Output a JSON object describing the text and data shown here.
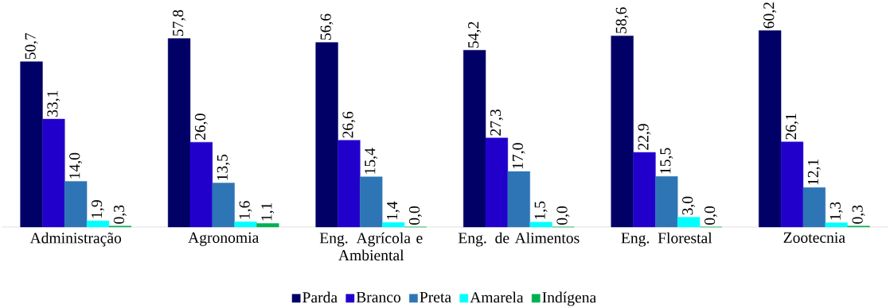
{
  "chart_data": {
    "type": "bar",
    "legend": "bottom",
    "categories": [
      "Administração",
      "Agronomia",
      "Eng. Agrícola e Ambiental",
      "Eng. de Alimentos",
      "Eng. Florestal",
      "Zootecnia"
    ],
    "series": [
      {
        "name": "Parda",
        "color": "#000066",
        "values": [
          50.7,
          57.8,
          56.6,
          54.2,
          58.6,
          60.2
        ],
        "value_labels": [
          "50,7",
          "57,8",
          "56,6",
          "54,2",
          "58,6",
          "60,2"
        ]
      },
      {
        "name": "Branco",
        "color": "#2200cc",
        "values": [
          33.1,
          26.0,
          26.6,
          27.3,
          22.9,
          26.1
        ],
        "value_labels": [
          "33,1",
          "26,0",
          "26,6",
          "27,3",
          "22,9",
          "26,1"
        ]
      },
      {
        "name": "Preta",
        "color": "#2e75b6",
        "values": [
          14.0,
          13.5,
          15.4,
          17.0,
          15.5,
          12.1
        ],
        "value_labels": [
          "14,0",
          "13,5",
          "15,4",
          "17,0",
          "15,5",
          "12,1"
        ]
      },
      {
        "name": "Amarela",
        "color": "#00ffff",
        "values": [
          1.9,
          1.6,
          1.4,
          1.5,
          3.0,
          1.3
        ],
        "value_labels": [
          "1,9",
          "1,6",
          "1,4",
          "1,5",
          "3,0",
          "1,3"
        ]
      },
      {
        "name": "Indígena",
        "color": "#00b050",
        "values": [
          0.3,
          1.1,
          0.0,
          0.0,
          0.0,
          0.3
        ],
        "value_labels": [
          "0,3",
          "1,1",
          "0,0",
          "0,0",
          "0,0",
          "0,3"
        ]
      }
    ]
  }
}
